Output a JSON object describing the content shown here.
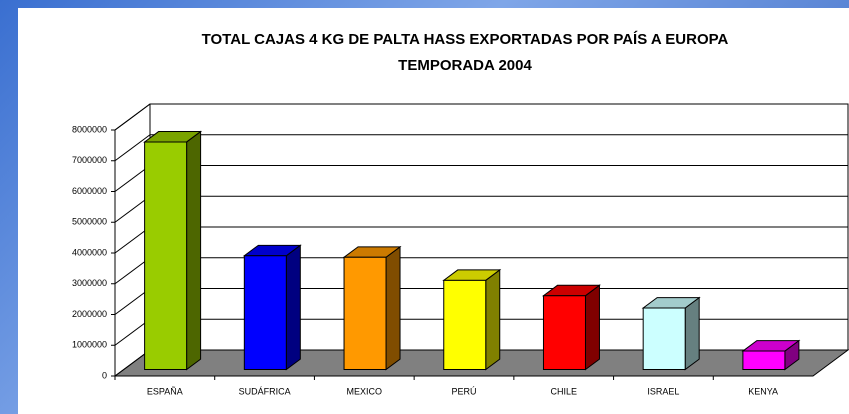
{
  "chart_data": {
    "type": "bar3d",
    "title": [
      "TOTAL CAJAS 4 KG DE PALTA HASS EXPORTADAS POR PAÍS A EUROPA",
      "TEMPORADA 2004"
    ],
    "categories": [
      "ESPAÑA",
      "SUDÁFRICA",
      "MEXICO",
      "PERÚ",
      "CHILE",
      "ISRAEL",
      "KENYA"
    ],
    "values": [
      7400000,
      3700000,
      3650000,
      2900000,
      2400000,
      2000000,
      600000
    ],
    "colors": [
      "#99cc00",
      "#0000ff",
      "#ff9900",
      "#ffff00",
      "#ff0000",
      "#ccffff",
      "#ff00ff"
    ],
    "ylim": [
      0,
      8000000
    ],
    "yticks": [
      0,
      1000000,
      2000000,
      3000000,
      4000000,
      5000000,
      6000000,
      7000000,
      8000000
    ],
    "grid": true
  }
}
